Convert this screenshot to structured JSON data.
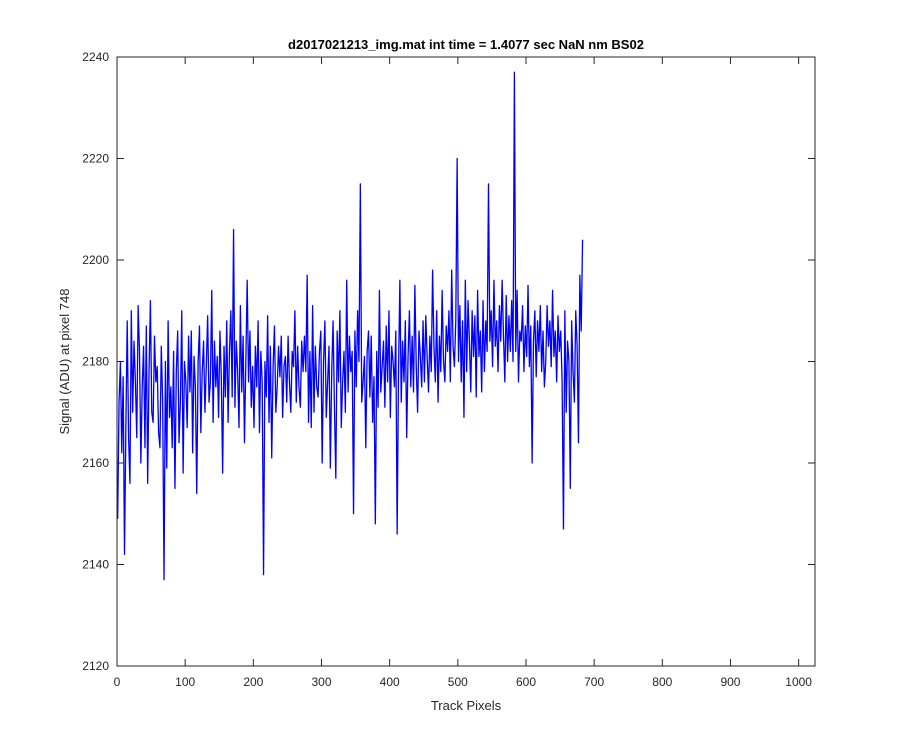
{
  "chart_data": {
    "type": "line",
    "title": "d2017021213_img.mat int time = 1.4077 sec  NaN nm BS02",
    "xlabel": "Track Pixels",
    "ylabel": "Signal (ADU) at pixel 748",
    "xlim": [
      0,
      1024
    ],
    "ylim": [
      2120,
      2240
    ],
    "xticks": [
      0,
      100,
      200,
      300,
      400,
      500,
      600,
      700,
      800,
      900,
      1000
    ],
    "yticks": [
      2120,
      2140,
      2160,
      2180,
      2200,
      2220,
      2240
    ],
    "grid": false,
    "legend": "none",
    "line_color": "#0000ff",
    "series": [
      {
        "x_start": 1,
        "x_step": 2,
        "values": [
          2149,
          2172,
          2180,
          2162,
          2177,
          2142,
          2167,
          2188,
          2165,
          2156,
          2190,
          2170,
          2184,
          2176,
          2165,
          2191,
          2182,
          2160,
          2175,
          2183,
          2163,
          2187,
          2156,
          2178,
          2192,
          2170,
          2168,
          2185,
          2176,
          2179,
          2166,
          2163,
          2183,
          2172,
          2137,
          2180,
          2159,
          2188,
          2169,
          2175,
          2163,
          2182,
          2155,
          2178,
          2186,
          2164,
          2172,
          2190,
          2158,
          2180,
          2176,
          2167,
          2185,
          2174,
          2186,
          2162,
          2181,
          2175,
          2154,
          2180,
          2187,
          2166,
          2178,
          2184,
          2170,
          2179,
          2189,
          2172,
          2176,
          2194,
          2168,
          2184,
          2175,
          2181,
          2169,
          2186,
          2177,
          2158,
          2183,
          2173,
          2188,
          2168,
          2182,
          2190,
          2173,
          2206,
          2171,
          2184,
          2178,
          2167,
          2191,
          2174,
          2185,
          2164,
          2180,
          2196,
          2176,
          2186,
          2171,
          2179,
          2167,
          2183,
          2175,
          2188,
          2166,
          2182,
          2176,
          2138,
          2180,
          2173,
          2189,
          2168,
          2183,
          2161,
          2179,
          2187,
          2170,
          2175,
          2183,
          2177,
          2185,
          2169,
          2179,
          2181,
          2172,
          2185,
          2176,
          2170,
          2182,
          2179,
          2190,
          2172,
          2183,
          2175,
          2171,
          2184,
          2178,
          2185,
          2178,
          2197,
          2168,
          2182,
          2167,
          2191,
          2170,
          2183,
          2175,
          2173,
          2182,
          2186,
          2160,
          2180,
          2188,
          2169,
          2176,
          2183,
          2159,
          2178,
          2188,
          2171,
          2157,
          2186,
          2176,
          2190,
          2167,
          2176,
          2182,
          2170,
          2196,
          2174,
          2185,
          2178,
          2182,
          2150,
          2186,
          2175,
          2190,
          2180,
          2215,
          2172,
          2176,
          2181,
          2163,
          2182,
          2186,
          2173,
          2185,
          2168,
          2177,
          2148,
          2182,
          2171,
          2194,
          2174,
          2179,
          2184,
          2171,
          2187,
          2176,
          2190,
          2169,
          2183,
          2180,
          2175,
          2186,
          2146,
          2178,
          2196,
          2172,
          2184,
          2176,
          2188,
          2165,
          2181,
          2190,
          2175,
          2185,
          2174,
          2195,
          2179,
          2170,
          2186,
          2181,
          2175,
          2188,
          2176,
          2189,
          2181,
          2174,
          2185,
          2178,
          2198,
          2183,
          2176,
          2190,
          2172,
          2185,
          2178,
          2194,
          2180,
          2176,
          2187,
          2182,
          2190,
          2176,
          2198,
          2183,
          2179,
          2188,
          2220,
          2180,
          2191,
          2176,
          2188,
          2169,
          2196,
          2178,
          2192,
          2184,
          2174,
          2190,
          2181,
          2189,
          2173,
          2194,
          2181,
          2186,
          2174,
          2192,
          2178,
          2188,
          2182,
          2215,
          2184,
          2190,
          2179,
          2196,
          2183,
          2188,
          2178,
          2191,
          2184,
          2196,
          2185,
          2176,
          2193,
          2180,
          2189,
          2182,
          2192,
          2180,
          2237,
          2182,
          2194,
          2176,
          2186,
          2184,
          2191,
          2178,
          2187,
          2181,
          2195,
          2179,
          2187,
          2160,
          2184,
          2190,
          2177,
          2188,
          2182,
          2191,
          2178,
          2186,
          2175,
          2180,
          2191,
          2183,
          2188,
          2179,
          2194,
          2181,
          2186,
          2176,
          2189,
          2182,
          2186,
          2176,
          2147,
          2190,
          2170,
          2184,
          2180,
          2155,
          2188,
          2178,
          2172,
          2190,
          2183,
          2164,
          2197,
          2186,
          2204
        ]
      }
    ]
  }
}
